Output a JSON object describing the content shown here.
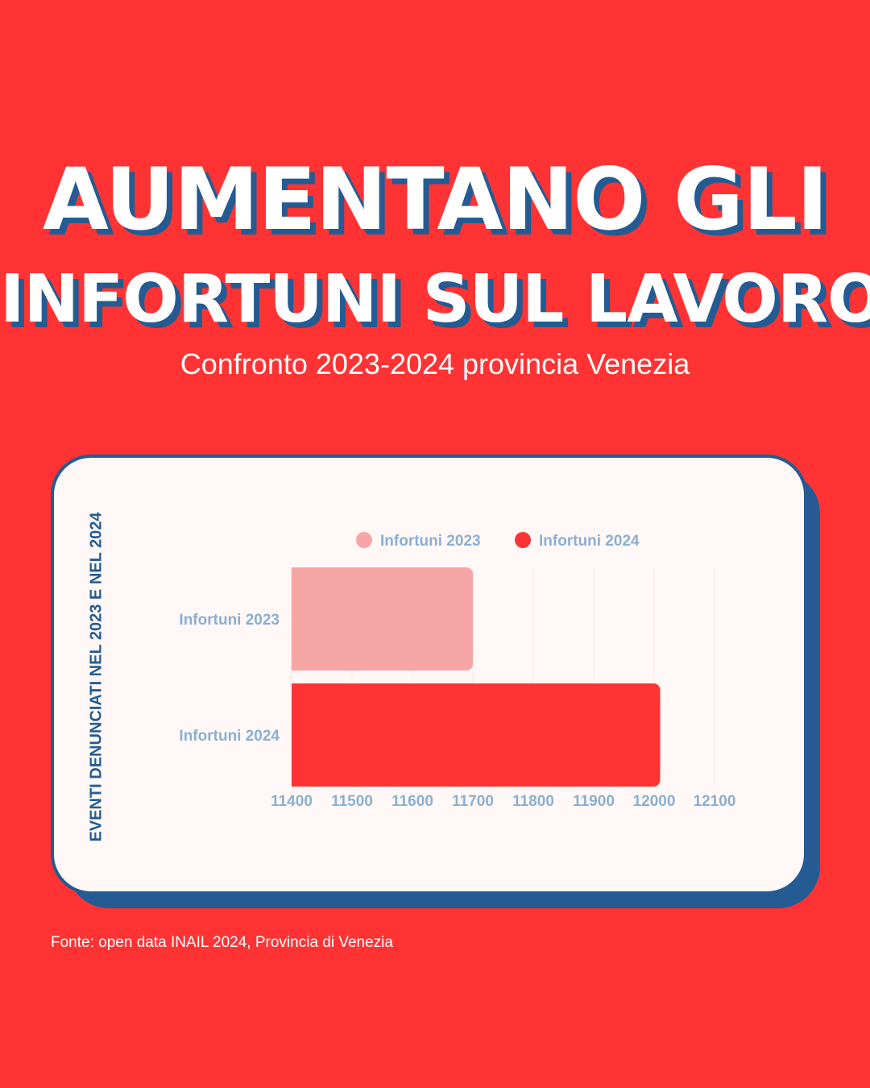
{
  "header": {
    "title_line1": "AUMENTANO GLI",
    "title_line2": "INFORTUNI SUL LAVORO",
    "subtitle": "Confronto 2023-2024 provincia Venezia"
  },
  "card": {
    "side_label": "EVENTI DENUNCIATI NEL 2023 E NEL 2024"
  },
  "footer": {
    "source": "Fonte: open data INAIL 2024, Provincia di Venezia"
  },
  "colors": {
    "background": "#FF3333",
    "accent_blue": "#245B93",
    "series_2023": "#F7A6A6",
    "series_2024": "#FF3333",
    "tick_text": "#8AAFD3"
  },
  "chart_data": {
    "type": "bar",
    "orientation": "horizontal",
    "categories": [
      "Infortuni 2023",
      "Infortuni 2024"
    ],
    "values": [
      11700,
      12010
    ],
    "legend": [
      "Infortuni 2023",
      "Infortuni 2024"
    ],
    "legend_position": "top",
    "xlim": [
      11400,
      12100
    ],
    "xticks": [
      11400,
      11500,
      11600,
      11700,
      11800,
      11900,
      12000,
      12100
    ],
    "grid": true
  }
}
